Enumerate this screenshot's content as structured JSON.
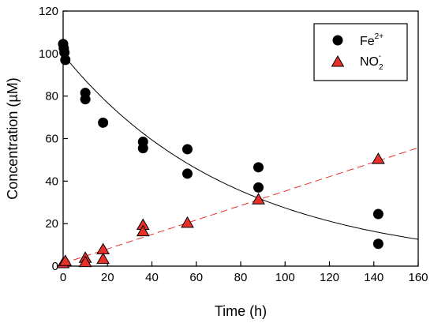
{
  "chart_data": {
    "type": "scatter",
    "xlabel": "Time (h)",
    "ylabel": "Concentration (µM)",
    "xlim": [
      0,
      160
    ],
    "ylim": [
      0,
      120
    ],
    "xticks": [
      0,
      20,
      40,
      60,
      80,
      100,
      120,
      140,
      160
    ],
    "yticks": [
      0,
      20,
      40,
      60,
      80,
      100,
      120
    ],
    "grid": false,
    "legend_position": "top-right",
    "series": [
      {
        "name": "Fe2+",
        "legend_base": "Fe",
        "legend_sup": "2+",
        "marker": "circle",
        "color": "#000000",
        "points": [
          [
            0,
            104.5
          ],
          [
            0.3,
            102.5
          ],
          [
            0.6,
            100.5
          ],
          [
            1,
            97
          ],
          [
            10,
            81.5
          ],
          [
            10,
            78.5
          ],
          [
            18,
            67.5
          ],
          [
            36,
            58.5
          ],
          [
            36,
            55.5
          ],
          [
            56,
            55
          ],
          [
            56,
            43.5
          ],
          [
            88,
            46.5
          ],
          [
            88,
            37
          ],
          [
            142,
            24.5
          ],
          [
            142,
            10.5
          ]
        ],
        "fit": {
          "style": "solid",
          "color": "#000000",
          "model": "exponential",
          "y0": 99.5,
          "k": 0.0129
        }
      },
      {
        "name": "NO2-",
        "legend_base": "NO",
        "legend_sub": "2",
        "legend_sup": "-",
        "marker": "triangle",
        "color": "#e8302a",
        "points": [
          [
            0,
            1.5
          ],
          [
            1,
            2.5
          ],
          [
            10,
            4
          ],
          [
            10,
            2
          ],
          [
            18,
            8
          ],
          [
            18,
            3.5
          ],
          [
            36,
            19.5
          ],
          [
            36,
            16.5
          ],
          [
            56,
            20.5
          ],
          [
            88,
            31.5
          ],
          [
            142,
            50.5
          ]
        ],
        "fit": {
          "style": "dashed",
          "color": "#e8302a",
          "model": "linear",
          "intercept": 1.3,
          "slope": 0.34
        }
      }
    ]
  }
}
